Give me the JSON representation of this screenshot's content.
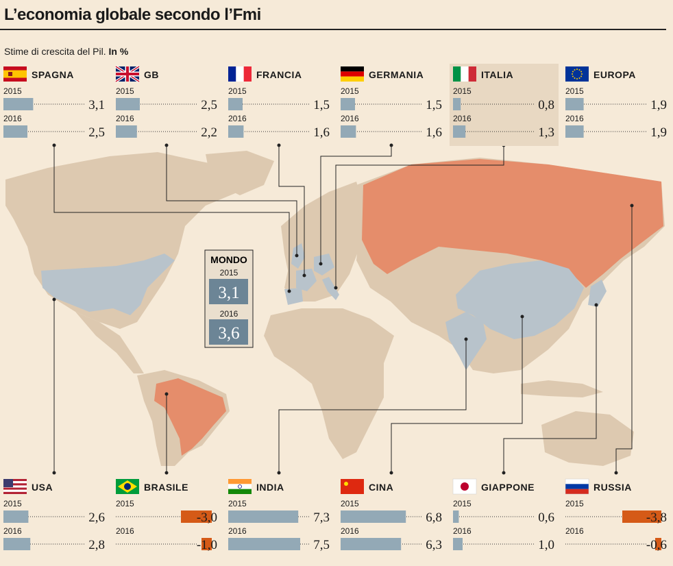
{
  "title": "L’economia globale secondo l’Fmi",
  "subtitle": "Stime di crescita del Pil.",
  "subtitle_unit": "In %",
  "colors": {
    "bar_positive": "#93a9b6",
    "bar_negative": "#d55a17",
    "highlight": "#e8d8c2",
    "map_land": "#ddc9b0",
    "map_blue": "#b8c3cb",
    "map_orange": "#e58d6b",
    "mondo_box": "#6c8596"
  },
  "mondo": {
    "label": "MONDO",
    "year_2015": "2015",
    "value_2015": "3,1",
    "year_2016": "2016",
    "value_2016": "3,6"
  },
  "chart_data": {
    "type": "bar",
    "title": "L’economia globale secondo l’Fmi",
    "subtitle": "Stime di crescita del Pil. In %",
    "series_names": [
      "2015",
      "2016"
    ],
    "xlim": [
      0,
      7.5
    ],
    "countries": [
      {
        "name": "SPAGNA",
        "flag": "spain-flag",
        "y2015": 3.1,
        "y2016": 2.5,
        "l2015": "3,1",
        "l2016": "2,5",
        "highlight": false
      },
      {
        "name": "GB",
        "flag": "uk-flag",
        "y2015": 2.5,
        "y2016": 2.2,
        "l2015": "2,5",
        "l2016": "2,2",
        "highlight": false
      },
      {
        "name": "FRANCIA",
        "flag": "france-flag",
        "y2015": 1.5,
        "y2016": 1.6,
        "l2015": "1,5",
        "l2016": "1,6",
        "highlight": false
      },
      {
        "name": "GERMANIA",
        "flag": "germany-flag",
        "y2015": 1.5,
        "y2016": 1.6,
        "l2015": "1,5",
        "l2016": "1,6",
        "highlight": false
      },
      {
        "name": "ITALIA",
        "flag": "italy-flag",
        "y2015": 0.8,
        "y2016": 1.3,
        "l2015": "0,8",
        "l2016": "1,3",
        "highlight": true
      },
      {
        "name": "EUROPA",
        "flag": "eu-flag",
        "y2015": 1.9,
        "y2016": 1.9,
        "l2015": "1,9",
        "l2016": "1,9",
        "highlight": false
      },
      {
        "name": "USA",
        "flag": "usa-flag",
        "y2015": 2.6,
        "y2016": 2.8,
        "l2015": "2,6",
        "l2016": "2,8",
        "highlight": false
      },
      {
        "name": "BRASILE",
        "flag": "brazil-flag",
        "y2015": -3.0,
        "y2016": -1.0,
        "l2015": "-3,0",
        "l2016": "-1,0",
        "highlight": false
      },
      {
        "name": "INDIA",
        "flag": "india-flag",
        "y2015": 7.3,
        "y2016": 7.5,
        "l2015": "7,3",
        "l2016": "7,5",
        "highlight": false
      },
      {
        "name": "CINA",
        "flag": "china-flag",
        "y2015": 6.8,
        "y2016": 6.3,
        "l2015": "6,8",
        "l2016": "6,3",
        "highlight": false
      },
      {
        "name": "GIAPPONE",
        "flag": "japan-flag",
        "y2015": 0.6,
        "y2016": 1.0,
        "l2015": "0,6",
        "l2016": "1,0",
        "highlight": false
      },
      {
        "name": "RUSSIA",
        "flag": "russia-flag",
        "y2015": -3.8,
        "y2016": -0.6,
        "l2015": "-3,8",
        "l2016": "-0,6",
        "highlight": false
      }
    ]
  }
}
